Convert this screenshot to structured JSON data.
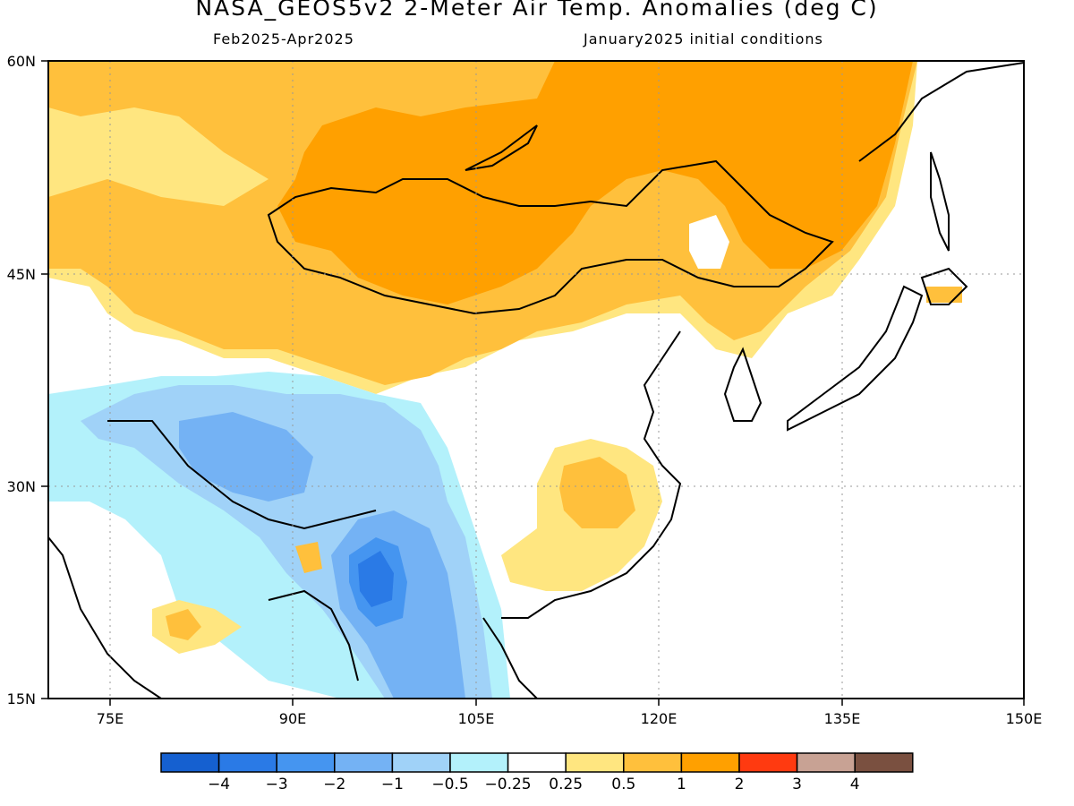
{
  "title": "NASA_GEOS5v2 2-Meter Air Temp. Anomalies (deg C)",
  "subtitle_left": "Feb2025-Apr2025",
  "subtitle_right": "January2025 initial conditions",
  "lat_labels": [
    "60N",
    "45N",
    "30N",
    "15N"
  ],
  "lon_labels": [
    "75E",
    "90E",
    "105E",
    "120E",
    "135E",
    "150E"
  ],
  "colorbar": {
    "labels": [
      "-4",
      "-3",
      "-2",
      "-1",
      "-0.5",
      "-0.25",
      "0.25",
      "0.5",
      "1",
      "2",
      "3",
      "4"
    ],
    "colors": [
      "#1560d0",
      "#2a7ae6",
      "#4595f0",
      "#74b2f4",
      "#a0d2f8",
      "#b3f1fb",
      "#ffffff",
      "#ffe680",
      "#ffc03c",
      "#ffa000",
      "#ff3a10",
      "#c8a294",
      "#7a5040"
    ]
  },
  "regions": [
    {
      "name": "siberia-mongolia-warm",
      "level": "0.5 to 1",
      "color": "#ffc03c"
    },
    {
      "name": "mongolia-core-warm",
      "level": "1 to 2",
      "color": "#ffa000"
    },
    {
      "name": "tibet-cool",
      "level": "-1 to -0.5",
      "color": "#a0d2f8"
    },
    {
      "name": "yunnan-myanmar-cool",
      "level": "-4 to -1",
      "color": "#4595f0"
    },
    {
      "name": "central-china-warm",
      "level": "0.5 to 1",
      "color": "#ffc03c"
    }
  ]
}
